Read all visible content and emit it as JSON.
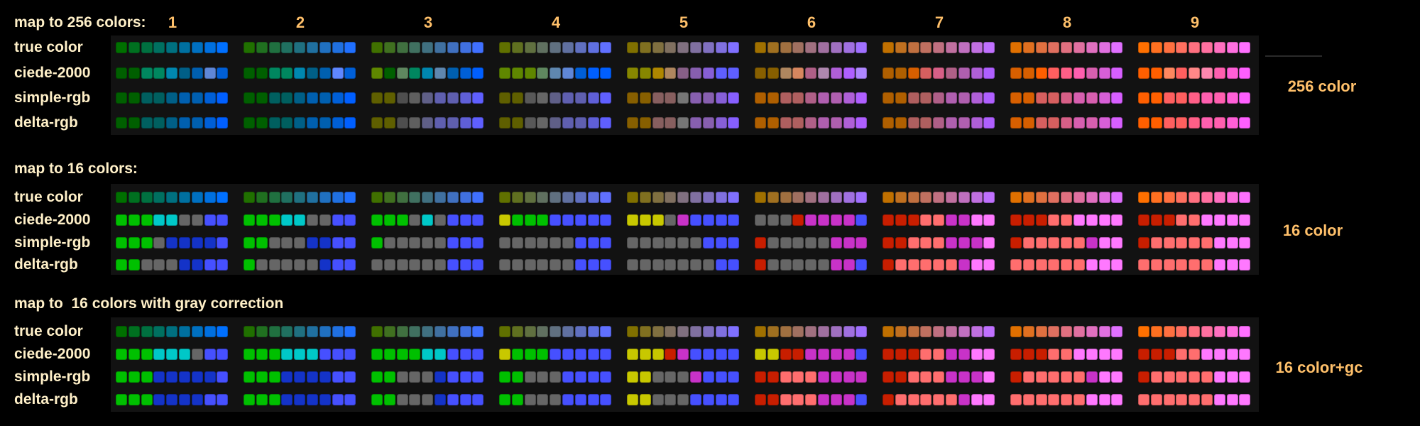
{
  "group_numbers": [
    "1",
    "2",
    "3",
    "4",
    "5",
    "6",
    "7",
    "8",
    "9"
  ],
  "colors": {
    "background": "#000000",
    "panel": "#121212",
    "label_text": "#fff0c8",
    "accent_text": "#ffc06a"
  },
  "sections": [
    {
      "title": "map to 256 colors:",
      "side_label": "256 color",
      "rows": [
        {
          "label": "true color",
          "groups": [
            "#007000 #007020 #007040 #007060 #007080 #0070a0 #0070c0 #0070e0 #0070ff",
            "#207000 #207020 #207040 #207060 #207080 #2070a0 #2070c0 #2070e0 #2070ff",
            "#407000 #407020 #407040 #407060 #407080 #4070a0 #4070c0 #4070e0 #4070ff",
            "#607000 #607020 #607040 #607060 #607080 #6070a0 #6070c0 #6070e0 #6070ff",
            "#807000 #807020 #807040 #807060 #807080 #8070a0 #8070c0 #8070e0 #8070ff",
            "#a07000 #a07020 #a07040 #a07060 #a07080 #a070a0 #a070c0 #a070e0 #a070ff",
            "#c07000 #c07020 #c07040 #c07060 #c07080 #c070a0 #c070c0 #c070e0 #c070ff",
            "#e07000 #e07020 #e07040 #e07060 #e07080 #e070a0 #e070c0 #e070e0 #e070ff",
            "#ff7000 #ff7020 #ff7040 #ff7060 #ff7080 #ff70a0 #ff70c0 #ff70e0 #ff70ff"
          ]
        },
        {
          "label": "ciede-2000",
          "groups": [
            "#005f00 #005f00 #00875f #00875f #0087af #005f87 #005faf #5f87d7 #005fd7",
            "#005f00 #005f00 #00875f #00875f #0087af #005f87 #005faf #5f87ff #005fd7",
            "#5f8700 #005f00 #5f875f #00875f #0087af #5f87af #005faf #005fd7 #005fff",
            "#5f8700 #5f8700 #5f8700 #5f875f #5f87af #5f87d7 #005fd7 #005fff #005fff",
            "#878700 #878700 #af8700 #af875f #875f87 #875faf #875fd7 #5f5fff #5f5fff",
            "#875f00 #875f00 #af875f #d7875f #af5f87 #af87af #af5fd7 #af5fff #af87ff",
            "#af5f00 #af5f00 #d75f00 #d75f5f #d75f87 #af5f87 #af5faf #af5fd7 #af5fff",
            "#d75f00 #d75f00 #ff5f00 #ff5f5f #ff5f87 #ff5faf #d75faf #d75fd7 #d75fff",
            "#ff5f00 #ff5f00 #ff875f #ff5f5f #ff8787 #ff87af #ff5faf #ff5fd7 #ff5fff"
          ]
        },
        {
          "label": "simple-rgb",
          "groups": [
            "#005f00 #005f00 #005f5f #005f5f #005f87 #005faf #005faf #005fd7 #005fff",
            "#005f00 #005f00 #005f5f #005f5f #005f87 #005faf #005faf #005fd7 #005fff",
            "#5f5f00 #5f5f00 #4e4e4e #5f5f5f #5f5f87 #5f5faf #5f5faf #5f5fd7 #5f5fff",
            "#5f5f00 #5f5f00 #585858 #666666 #5f5f87 #5f5faf #5f5faf #5f5fd7 #5f5fff",
            "#875f00 #875f00 #875f5f #875f5f #767676 #875faf #875faf #875fd7 #875fff",
            "#af5f00 #af5f00 #af5f5f #af5f5f #af5f87 #af5faf #af5faf #af5fd7 #af5fff",
            "#af5f00 #af5f00 #af5f5f #af5f5f #af5f87 #af5faf #af5faf #af5fd7 #af5fff",
            "#d75f00 #d75f00 #d75f5f #d75f5f #d75f87 #d75faf #d75faf #d75fd7 #d75fff",
            "#ff5f00 #ff5f00 #ff5f5f #ff5f5f #ff5f87 #ff5faf #ff5faf #ff5fd7 #ff5fff"
          ]
        },
        {
          "label": "delta-rgb",
          "groups": [
            "#005f00 #005f00 #005f5f #005f5f #005f87 #005faf #005faf #005fd7 #005fff",
            "#005f00 #005f00 #005f5f #005f5f #005f87 #005faf #005faf #005fd7 #005fff",
            "#5f5f00 #5f5f00 #4e4e4e #5f5f5f #5f5f87 #5f5faf #5f5faf #5f5fd7 #5f5fff",
            "#5f5f00 #5f5f00 #585858 #666666 #5f5f87 #5f5faf #5f5faf #5f5fd7 #5f5fff",
            "#875f00 #875f00 #875f5f #875f5f #767676 #875faf #875faf #875fd7 #875fff",
            "#af5f00 #af5f00 #af5f5f #af5f5f #af5f87 #af5faf #af5faf #af5fd7 #af5fff",
            "#af5f00 #af5f00 #af5f5f #af5f5f #af5f87 #af5faf #af5faf #af5fd7 #af5fff",
            "#d75f00 #d75f00 #d75f5f #d75f5f #d75f87 #d75faf #d75faf #d75fd7 #d75fff",
            "#ff5f00 #ff5f00 #ff5f5f #ff5f5f #ff5f87 #ff5faf #ff5faf #ff5fd7 #ff5fff"
          ]
        }
      ]
    },
    {
      "title": "map to 16 colors:",
      "side_label": "16 color",
      "rows": [
        {
          "label": "true color",
          "groups": [
            "#007000 #007020 #007040 #007060 #007080 #0070a0 #0070c0 #0070e0 #0070ff",
            "#207000 #207020 #207040 #207060 #207080 #2070a0 #2070c0 #2070e0 #2070ff",
            "#407000 #407020 #407040 #407060 #407080 #4070a0 #4070c0 #4070e0 #4070ff",
            "#607000 #607020 #607040 #607060 #607080 #6070a0 #6070c0 #6070e0 #6070ff",
            "#807000 #807020 #807040 #807060 #807080 #8070a0 #8070c0 #8070e0 #8070ff",
            "#a07000 #a07020 #a07040 #a07060 #a07080 #a070a0 #a070c0 #a070e0 #a070ff",
            "#c07000 #c07020 #c07040 #c07060 #c07080 #c070a0 #c070c0 #c070e0 #c070ff",
            "#e07000 #e07020 #e07040 #e07060 #e07080 #e070a0 #e070c0 #e070e0 #e070ff",
            "#ff7000 #ff7020 #ff7040 #ff7060 #ff7080 #ff70a0 #ff70c0 #ff70e0 #ff70ff"
          ]
        },
        {
          "label": "ciede-2000",
          "groups": [
            "#00c000 #00c000 #00c000 #00c8c8 #00c8c8 #666666 #666666 #4650ff #4650ff",
            "#00c000 #00c000 #00c000 #00c8c8 #00c8c8 #666666 #666666 #4650ff #4650ff",
            "#00c000 #00c000 #00c000 #666666 #00c8c8 #666666 #4650ff #4650ff #4650ff",
            "#c8c800 #00c000 #00c000 #00c000 #4650ff #4650ff #4650ff #4650ff #4650ff",
            "#c8c800 #c8c800 #c8c800 #666666 #c832c8 #4650ff #4650ff #4650ff #4650ff",
            "#666666 #666666 #666666 #c81e00 #c832c8 #c832c8 #c832c8 #c832c8 #4650ff",
            "#c81e00 #c81e00 #c81e00 #ff6e6e #ff6e6e #c832c8 #c832c8 #ff78ff #ff78ff",
            "#c81e00 #c81e00 #c81e00 #ff6e6e #ff6e6e #ff78ff #ff78ff #ff78ff #ff78ff",
            "#c81e00 #c81e00 #c81e00 #ff6e6e #ff6e6e #ff78ff #ff78ff #ff78ff #ff78ff"
          ]
        },
        {
          "label": "simple-rgb",
          "groups": [
            "#00c000 #00c000 #00c000 #666666 #1433c8 #1433c8 #1433c8 #1433c8 #4650ff",
            "#00c000 #00c000 #666666 #666666 #666666 #1433c8 #1433c8 #4650ff #4650ff",
            "#00c000 #666666 #666666 #666666 #666666 #666666 #4650ff #4650ff #4650ff",
            "#666666 #666666 #666666 #666666 #666666 #666666 #4650ff #4650ff #4650ff",
            "#666666 #666666 #666666 #666666 #666666 #666666 #4650ff #4650ff #4650ff",
            "#c81e00 #666666 #666666 #666666 #666666 #666666 #c832c8 #c832c8 #c832c8",
            "#c81e00 #c81e00 #ff6e6e #ff6e6e #ff6e6e #c832c8 #c832c8 #c832c8 #ff78ff",
            "#c81e00 #ff6e6e #ff6e6e #ff6e6e #ff6e6e #ff6e6e #c832c8 #ff78ff #ff78ff",
            "#c81e00 #ff6e6e #ff6e6e #ff6e6e #ff6e6e #ff6e6e #ff78ff #ff78ff #ff78ff"
          ]
        },
        {
          "label": "delta-rgb",
          "groups": [
            "#00c000 #00c000 #666666 #666666 #666666 #1433c8 #1433c8 #4650ff #4650ff",
            "#00c000 #666666 #666666 #666666 #666666 #666666 #1433c8 #4650ff #4650ff",
            "#666666 #666666 #666666 #666666 #666666 #666666 #4650ff #4650ff #4650ff",
            "#666666 #666666 #666666 #666666 #666666 #666666 #4650ff #4650ff #4650ff",
            "#666666 #666666 #666666 #666666 #666666 #666666 #666666 #4650ff #4650ff",
            "#c81e00 #666666 #666666 #666666 #666666 #666666 #c832c8 #c832c8 #4650ff",
            "#c81e00 #ff6e6e #ff6e6e #ff6e6e #ff6e6e #ff6e6e #c832c8 #ff78ff #ff78ff",
            "#ff6e6e #ff6e6e #ff6e6e #ff6e6e #ff6e6e #ff6e6e #ff78ff #ff78ff #ff78ff",
            "#ff6e6e #ff6e6e #ff6e6e #ff6e6e #ff6e6e #ff6e6e #ff78ff #ff78ff #ff78ff"
          ]
        }
      ]
    },
    {
      "title": "map to  16 colors with gray correction",
      "side_label": "16 color+gc",
      "rows": [
        {
          "label": "true color",
          "groups": [
            "#007000 #007020 #007040 #007060 #007080 #0070a0 #0070c0 #0070e0 #0070ff",
            "#207000 #207020 #207040 #207060 #207080 #2070a0 #2070c0 #2070e0 #2070ff",
            "#407000 #407020 #407040 #407060 #407080 #4070a0 #4070c0 #4070e0 #4070ff",
            "#607000 #607020 #607040 #607060 #607080 #6070a0 #6070c0 #6070e0 #6070ff",
            "#807000 #807020 #807040 #807060 #807080 #8070a0 #8070c0 #8070e0 #8070ff",
            "#a07000 #a07020 #a07040 #a07060 #a07080 #a070a0 #a070c0 #a070e0 #a070ff",
            "#c07000 #c07020 #c07040 #c07060 #c07080 #c070a0 #c070c0 #c070e0 #c070ff",
            "#e07000 #e07020 #e07040 #e07060 #e07080 #e070a0 #e070c0 #e070e0 #e070ff",
            "#ff7000 #ff7020 #ff7040 #ff7060 #ff7080 #ff70a0 #ff70c0 #ff70e0 #ff70ff"
          ]
        },
        {
          "label": "ciede-2000",
          "groups": [
            "#00c000 #00c000 #00c000 #00c8c8 #00c8c8 #00c8c8 #666666 #4650ff #4650ff",
            "#00c000 #00c000 #00c000 #00c8c8 #00c8c8 #00c8c8 #4650ff #4650ff #4650ff",
            "#00c000 #00c000 #00c000 #00c000 #00c8c8 #00c8c8 #4650ff #4650ff #4650ff",
            "#c8c800 #00c000 #00c000 #00c000 #4650ff #4650ff #4650ff #4650ff #4650ff",
            "#c8c800 #c8c800 #c8c800 #c81e00 #c832c8 #4650ff #4650ff #4650ff #4650ff",
            "#c8c800 #c8c800 #c81e00 #c81e00 #c832c8 #c832c8 #c832c8 #c832c8 #4650ff",
            "#c81e00 #c81e00 #c81e00 #ff6e6e #ff6e6e #c832c8 #c832c8 #ff78ff #ff78ff",
            "#c81e00 #c81e00 #c81e00 #ff6e6e #ff6e6e #ff78ff #ff78ff #ff78ff #ff78ff",
            "#c81e00 #c81e00 #c81e00 #ff6e6e #ff6e6e #ff78ff #ff78ff #ff78ff #ff78ff"
          ]
        },
        {
          "label": "simple-rgb",
          "groups": [
            "#00c000 #00c000 #00c000 #1433c8 #1433c8 #1433c8 #1433c8 #1433c8 #4650ff",
            "#00c000 #00c000 #00c000 #1433c8 #1433c8 #1433c8 #1433c8 #4650ff #4650ff",
            "#00c000 #00c000 #666666 #666666 #666666 #1433c8 #4650ff #4650ff #4650ff",
            "#00c000 #00c000 #666666 #666666 #666666 #4650ff #4650ff #4650ff #4650ff",
            "#c8c800 #c8c800 #666666 #666666 #666666 #c832c8 #4650ff #4650ff #4650ff",
            "#c81e00 #c81e00 #ff6e6e #ff6e6e #ff6e6e #c832c8 #c832c8 #c832c8 #c832c8",
            "#c81e00 #c81e00 #ff6e6e #ff6e6e #ff6e6e #c832c8 #c832c8 #c832c8 #ff78ff",
            "#c81e00 #ff6e6e #ff6e6e #ff6e6e #ff6e6e #ff6e6e #c832c8 #ff78ff #ff78ff",
            "#c81e00 #ff6e6e #ff6e6e #ff6e6e #ff6e6e #ff6e6e #ff78ff #ff78ff #ff78ff"
          ]
        },
        {
          "label": "delta-rgb",
          "groups": [
            "#00c000 #00c000 #00c000 #1433c8 #1433c8 #1433c8 #1433c8 #4650ff #4650ff",
            "#00c000 #00c000 #00c000 #1433c8 #1433c8 #1433c8 #1433c8 #4650ff #4650ff",
            "#00c000 #00c000 #666666 #666666 #666666 #1433c8 #4650ff #4650ff #4650ff",
            "#00c000 #00c000 #666666 #666666 #666666 #4650ff #4650ff #4650ff #4650ff",
            "#c8c800 #c8c800 #666666 #666666 #666666 #4650ff #4650ff #4650ff #4650ff",
            "#c81e00 #c81e00 #ff6e6e #ff6e6e #ff6e6e #c832c8 #c832c8 #c832c8 #4650ff",
            "#c81e00 #ff6e6e #ff6e6e #ff6e6e #ff6e6e #ff6e6e #c832c8 #ff78ff #ff78ff",
            "#ff6e6e #ff6e6e #ff6e6e #ff6e6e #ff6e6e #ff6e6e #ff78ff #ff78ff #ff78ff",
            "#ff6e6e #ff6e6e #ff6e6e #ff6e6e #ff6e6e #ff6e6e #ff78ff #ff78ff #ff78ff"
          ]
        }
      ]
    }
  ]
}
